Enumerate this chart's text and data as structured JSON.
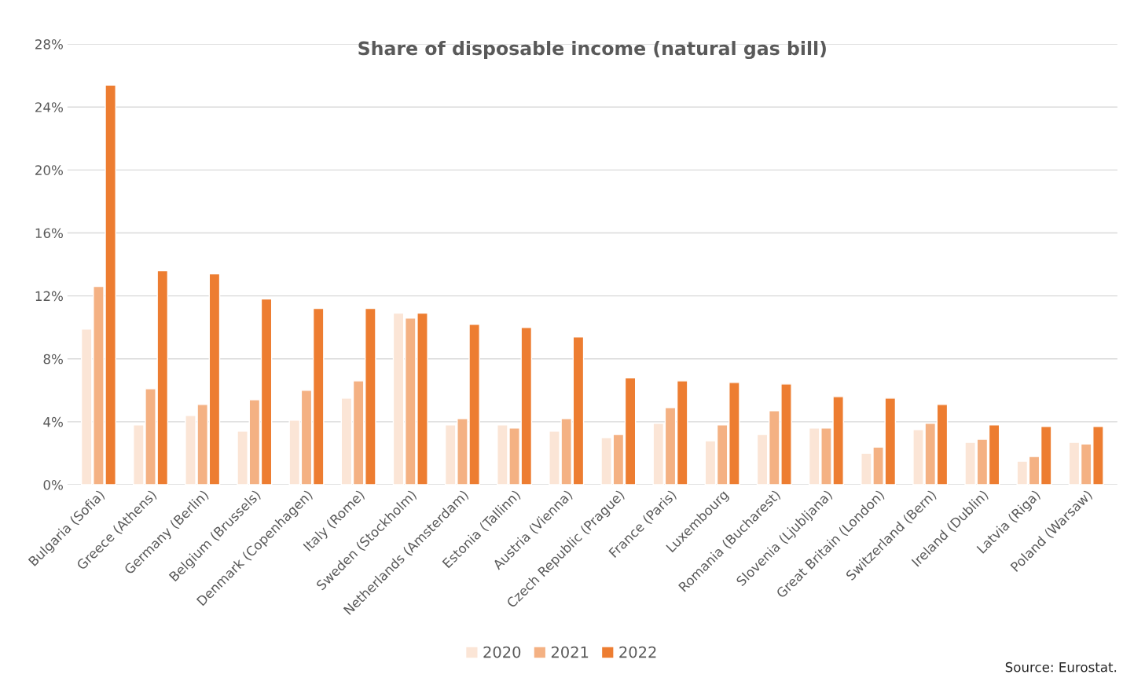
{
  "chart_data": {
    "type": "bar",
    "title": "Share of disposable income (natural gas bill)",
    "categories": [
      "Bulgaria (Sofia)",
      "Greece (Athens)",
      "Germany (Berlin)",
      "Belgium (Brussels)",
      "Denmark (Copenhagen)",
      "Italy (Rome)",
      "Sweden (Stockholm)",
      "Netherlands (Amsterdam)",
      "Estonia (Tallinn)",
      "Austria (Vienna)",
      "Czech Republic (Prague)",
      "France (Paris)",
      "Luxembourg",
      "Romania (Bucharest)",
      "Slovenia (Ljubljana)",
      "Great Britain (London)",
      "Switzerland (Bern)",
      "Ireland (Dublin)",
      "Latvia (Riga)",
      "Poland (Warsaw)"
    ],
    "series": [
      {
        "name": "2020",
        "color": "#fbe5d6",
        "values": [
          9.9,
          3.8,
          4.4,
          3.4,
          4.1,
          5.5,
          10.9,
          3.8,
          3.8,
          3.4,
          3.0,
          3.9,
          2.8,
          3.2,
          3.6,
          2.0,
          3.5,
          2.7,
          1.5,
          2.7
        ]
      },
      {
        "name": "2021",
        "color": "#f4b183",
        "values": [
          12.6,
          6.1,
          5.1,
          5.4,
          6.0,
          6.6,
          10.6,
          4.2,
          3.6,
          4.2,
          3.2,
          4.9,
          3.8,
          4.7,
          3.6,
          2.4,
          3.9,
          2.9,
          1.8,
          2.6
        ]
      },
      {
        "name": "2022",
        "color": "#ed7d31",
        "values": [
          25.4,
          13.6,
          13.4,
          11.8,
          11.2,
          11.2,
          10.9,
          10.2,
          10.0,
          9.4,
          6.8,
          6.6,
          6.5,
          6.4,
          5.6,
          5.5,
          5.1,
          3.8,
          3.7,
          3.7
        ]
      }
    ],
    "ylim": [
      0,
      28
    ],
    "yticks": [
      {
        "value": 0,
        "label": "0%"
      },
      {
        "value": 4,
        "label": "4%"
      },
      {
        "value": 8,
        "label": "8%"
      },
      {
        "value": 12,
        "label": "12%"
      },
      {
        "value": 16,
        "label": "16%"
      },
      {
        "value": 20,
        "label": "20%"
      },
      {
        "value": 24,
        "label": "24%"
      },
      {
        "value": 28,
        "label": "28%"
      }
    ],
    "grid": "y",
    "legend": "bottom",
    "annotations": [
      "Source: Eurostat."
    ]
  }
}
